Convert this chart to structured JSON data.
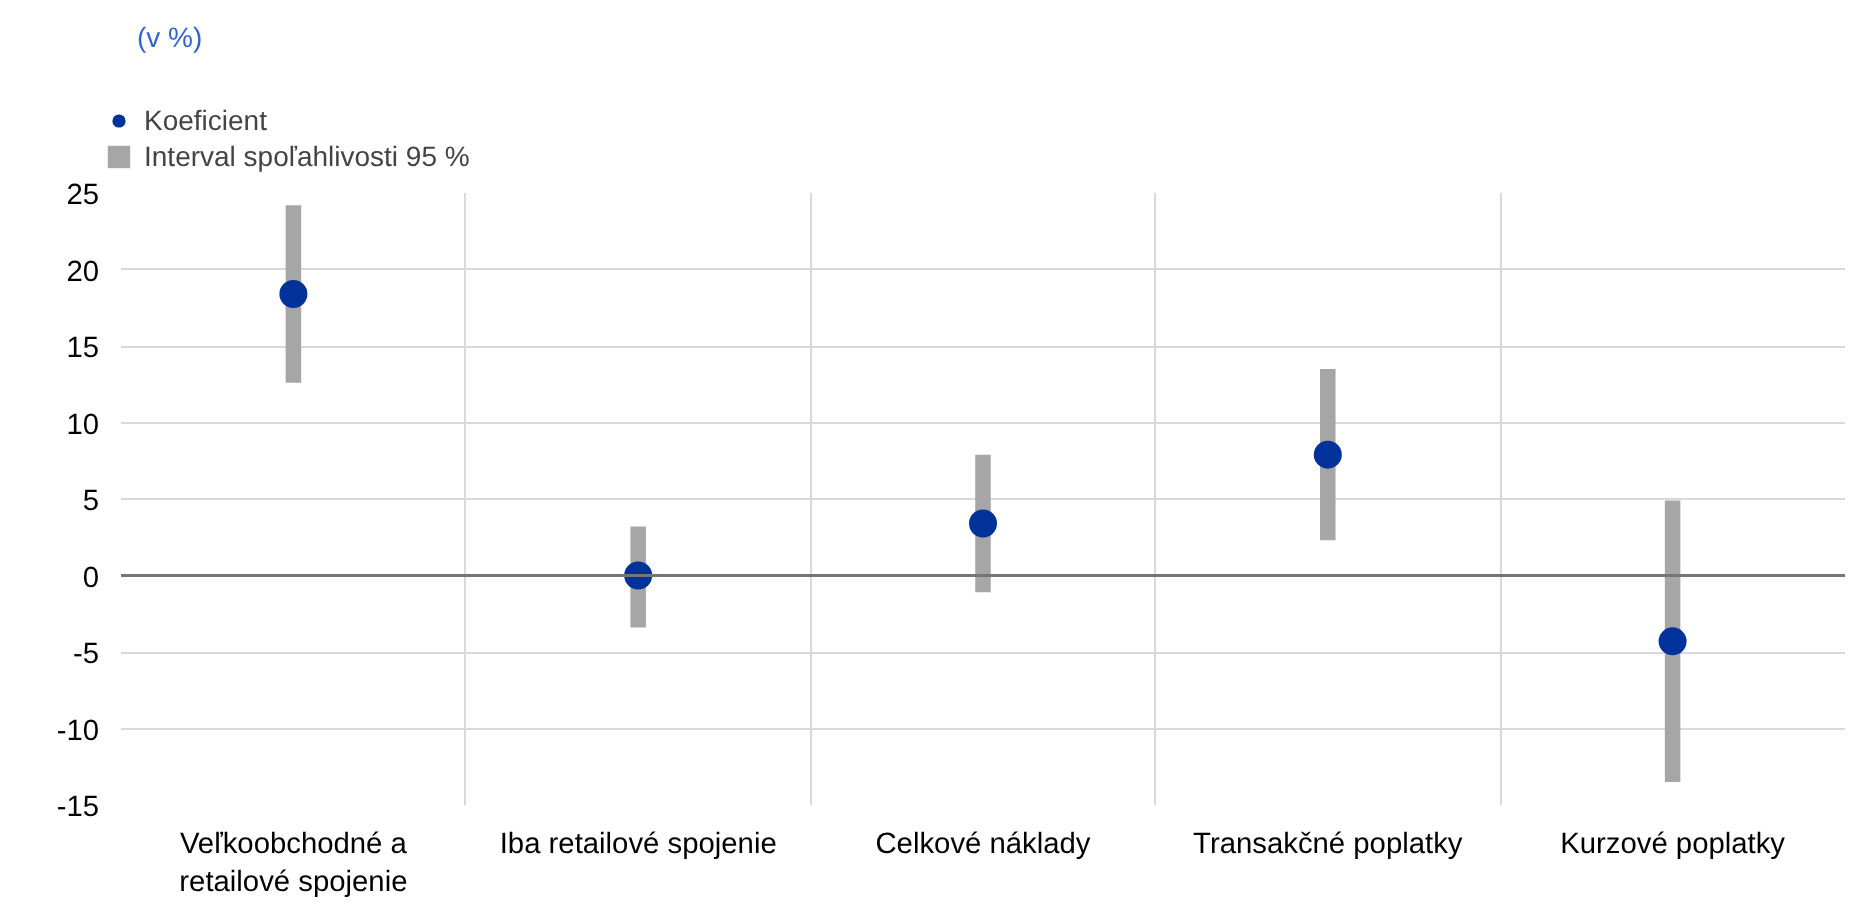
{
  "chart_data": {
    "type": "scatter",
    "ylabel": "(v %)",
    "categories": [
      "Veľkoobchodné a retailové spojenie",
      "Iba retailové spojenie",
      "Celkové náklady",
      "Transakčné poplatky",
      "Kurzové poplatky"
    ],
    "series": [
      {
        "name": "Koeficient",
        "color": "#003299",
        "values": [
          18.4,
          0.0,
          3.4,
          7.9,
          -4.3
        ]
      },
      {
        "name": "Interval spoľahlivosti 95 %",
        "type": "bar",
        "color": "#a6a6a6",
        "base": [
          12.6,
          -3.4,
          -1.1,
          2.3,
          -13.5
        ],
        "values": [
          11.6,
          6.6,
          9.0,
          11.2,
          18.4
        ]
      }
    ],
    "ylim": [
      -15,
      25
    ],
    "yticks": [
      -15,
      -10,
      -5,
      0,
      5,
      10,
      15,
      20,
      25
    ],
    "ref_lines": [
      {
        "axis": "y",
        "value": 0,
        "color": "#757575"
      }
    ],
    "grid": true,
    "legend": "top left",
    "marker": "circle"
  }
}
